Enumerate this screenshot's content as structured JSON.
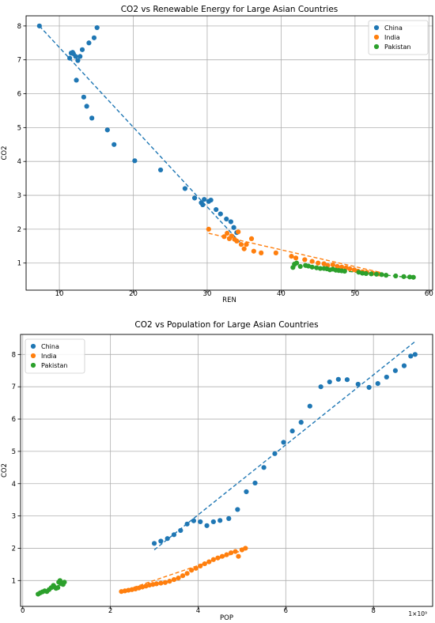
{
  "chart_data": [
    {
      "type": "scatter",
      "title": "CO2 vs Renewable Energy for Large Asian Countries",
      "xlabel": "REN",
      "ylabel": "CO2",
      "xlim": [
        5.5,
        60.5
      ],
      "ylim": [
        0.2,
        8.3
      ],
      "xticks": [
        10,
        20,
        30,
        40,
        50,
        60
      ],
      "yticks": [
        1,
        2,
        3,
        4,
        5,
        6,
        7,
        8
      ],
      "grid": true,
      "legend_position": "top-right",
      "trend_lines": "dashed",
      "series": [
        {
          "name": "China",
          "color": "#1f77b4",
          "points": [
            [
              7.3,
              8.0
            ],
            [
              11.4,
              7.05
            ],
            [
              11.6,
              7.2
            ],
            [
              11.8,
              7.22
            ],
            [
              11.9,
              7.18
            ],
            [
              12.2,
              7.1
            ],
            [
              12.3,
              6.4
            ],
            [
              12.5,
              6.98
            ],
            [
              12.8,
              7.1
            ],
            [
              13.1,
              7.3
            ],
            [
              13.3,
              5.9
            ],
            [
              13.7,
              5.63
            ],
            [
              14.0,
              7.5
            ],
            [
              14.4,
              5.28
            ],
            [
              14.7,
              7.65
            ],
            [
              15.1,
              7.95
            ],
            [
              16.5,
              4.93
            ],
            [
              17.4,
              4.5
            ],
            [
              20.2,
              4.02
            ],
            [
              23.7,
              3.75
            ],
            [
              27.0,
              3.2
            ],
            [
              28.3,
              2.92
            ],
            [
              29.2,
              2.78
            ],
            [
              29.4,
              2.72
            ],
            [
              29.6,
              2.88
            ],
            [
              30.2,
              2.82
            ],
            [
              30.5,
              2.86
            ],
            [
              31.2,
              2.58
            ],
            [
              31.8,
              2.45
            ],
            [
              32.6,
              2.3
            ],
            [
              33.2,
              2.22
            ],
            [
              33.6,
              2.05
            ],
            [
              34.0,
              1.9
            ]
          ],
          "trend": [
            [
              7.3,
              8.0
            ],
            [
              34.5,
              1.6
            ]
          ]
        },
        {
          "name": "India",
          "color": "#ff7f0e",
          "points": [
            [
              30.2,
              2.0
            ],
            [
              32.3,
              1.78
            ],
            [
              32.7,
              1.88
            ],
            [
              33.0,
              1.72
            ],
            [
              33.3,
              1.8
            ],
            [
              33.7,
              1.7
            ],
            [
              34.0,
              1.65
            ],
            [
              34.2,
              1.92
            ],
            [
              34.6,
              1.55
            ],
            [
              35.0,
              1.42
            ],
            [
              35.3,
              1.55
            ],
            [
              36.0,
              1.72
            ],
            [
              36.3,
              1.35
            ],
            [
              37.3,
              1.3
            ],
            [
              39.3,
              1.3
            ],
            [
              41.4,
              1.2
            ],
            [
              42.0,
              1.15
            ],
            [
              43.2,
              1.1
            ],
            [
              44.2,
              1.05
            ],
            [
              45.0,
              1.0
            ],
            [
              45.8,
              0.98
            ],
            [
              46.3,
              0.93
            ],
            [
              47.0,
              0.95
            ],
            [
              47.6,
              0.9
            ],
            [
              48.2,
              0.88
            ],
            [
              48.8,
              0.86
            ],
            [
              49.3,
              0.83
            ],
            [
              49.9,
              0.8
            ],
            [
              50.4,
              0.76
            ],
            [
              51.0,
              0.74
            ],
            [
              51.6,
              0.73
            ],
            [
              52.4,
              0.7
            ],
            [
              53.2,
              0.68
            ]
          ],
          "trend": [
            [
              30.2,
              1.88
            ],
            [
              53.5,
              0.72
            ]
          ]
        },
        {
          "name": "Pakistan",
          "color": "#2ca02c",
          "points": [
            [
              41.6,
              0.87
            ],
            [
              41.8,
              0.97
            ],
            [
              42.1,
              1.0
            ],
            [
              42.6,
              0.9
            ],
            [
              43.3,
              0.93
            ],
            [
              43.7,
              0.91
            ],
            [
              44.2,
              0.88
            ],
            [
              44.8,
              0.86
            ],
            [
              45.3,
              0.84
            ],
            [
              45.8,
              0.84
            ],
            [
              46.2,
              0.83
            ],
            [
              46.6,
              0.8
            ],
            [
              47.0,
              0.82
            ],
            [
              47.4,
              0.79
            ],
            [
              47.8,
              0.78
            ],
            [
              48.2,
              0.77
            ],
            [
              48.6,
              0.76
            ],
            [
              50.5,
              0.73
            ],
            [
              51.0,
              0.7
            ],
            [
              51.5,
              0.69
            ],
            [
              52.2,
              0.68
            ],
            [
              52.9,
              0.67
            ],
            [
              53.6,
              0.66
            ],
            [
              54.2,
              0.64
            ],
            [
              55.5,
              0.62
            ],
            [
              56.6,
              0.6
            ],
            [
              57.4,
              0.59
            ],
            [
              57.9,
              0.58
            ]
          ],
          "trend": [
            [
              41.5,
              0.92
            ],
            [
              58.0,
              0.56
            ]
          ]
        }
      ]
    },
    {
      "type": "scatter",
      "title": "CO2 vs Population for Large Asian Countries",
      "xlabel": "POP",
      "ylabel": "CO2",
      "x_offset_label": "1×10⁹",
      "xlim": [
        -0.05,
        9.35
      ],
      "ylim": [
        0.2,
        8.62
      ],
      "xticks": [
        0,
        2,
        4,
        6,
        8
      ],
      "yticks": [
        1,
        2,
        3,
        4,
        5,
        6,
        7,
        8
      ],
      "grid": true,
      "legend_position": "top-left",
      "trend_lines": "dashed",
      "series": [
        {
          "name": "China",
          "color": "#1f77b4",
          "points": [
            [
              3.0,
              2.15
            ],
            [
              3.15,
              2.22
            ],
            [
              3.3,
              2.3
            ],
            [
              3.45,
              2.42
            ],
            [
              3.6,
              2.55
            ],
            [
              3.75,
              2.75
            ],
            [
              3.9,
              2.85
            ],
            [
              4.05,
              2.82
            ],
            [
              4.2,
              2.7
            ],
            [
              4.35,
              2.82
            ],
            [
              4.5,
              2.86
            ],
            [
              4.7,
              2.92
            ],
            [
              4.9,
              3.2
            ],
            [
              5.1,
              3.75
            ],
            [
              5.3,
              4.02
            ],
            [
              5.5,
              4.5
            ],
            [
              5.75,
              4.93
            ],
            [
              5.95,
              5.28
            ],
            [
              6.15,
              5.63
            ],
            [
              6.35,
              5.9
            ],
            [
              6.55,
              6.4
            ],
            [
              6.8,
              7.0
            ],
            [
              7.0,
              7.15
            ],
            [
              7.2,
              7.23
            ],
            [
              7.4,
              7.22
            ],
            [
              7.65,
              7.08
            ],
            [
              7.9,
              6.98
            ],
            [
              8.1,
              7.1
            ],
            [
              8.3,
              7.3
            ],
            [
              8.5,
              7.5
            ],
            [
              8.7,
              7.65
            ],
            [
              8.85,
              7.95
            ],
            [
              8.95,
              8.0
            ]
          ],
          "trend": [
            [
              3.0,
              1.95
            ],
            [
              8.95,
              8.4
            ]
          ]
        },
        {
          "name": "India",
          "color": "#ff7f0e",
          "points": [
            [
              2.25,
              0.66
            ],
            [
              2.33,
              0.68
            ],
            [
              2.41,
              0.7
            ],
            [
              2.49,
              0.72
            ],
            [
              2.57,
              0.74
            ],
            [
              2.65,
              0.77
            ],
            [
              2.73,
              0.8
            ],
            [
              2.81,
              0.83
            ],
            [
              2.89,
              0.86
            ],
            [
              2.97,
              0.88
            ],
            [
              3.05,
              0.9
            ],
            [
              3.15,
              0.92
            ],
            [
              3.25,
              0.94
            ],
            [
              3.35,
              0.98
            ],
            [
              3.45,
              1.03
            ],
            [
              3.55,
              1.08
            ],
            [
              3.65,
              1.15
            ],
            [
              3.75,
              1.22
            ],
            [
              3.85,
              1.32
            ],
            [
              3.95,
              1.38
            ],
            [
              4.05,
              1.45
            ],
            [
              4.15,
              1.52
            ],
            [
              4.25,
              1.58
            ],
            [
              4.35,
              1.65
            ],
            [
              4.45,
              1.7
            ],
            [
              4.55,
              1.75
            ],
            [
              4.65,
              1.8
            ],
            [
              4.75,
              1.86
            ],
            [
              4.85,
              1.9
            ],
            [
              4.92,
              1.75
            ],
            [
              5.0,
              1.95
            ],
            [
              5.08,
              2.0
            ]
          ],
          "trend": [
            [
              2.25,
              0.66
            ],
            [
              5.05,
              1.95
            ]
          ]
        },
        {
          "name": "Pakistan",
          "color": "#2ca02c",
          "points": [
            [
              0.35,
              0.58
            ],
            [
              0.4,
              0.62
            ],
            [
              0.45,
              0.65
            ],
            [
              0.5,
              0.68
            ],
            [
              0.55,
              0.66
            ],
            [
              0.6,
              0.72
            ],
            [
              0.65,
              0.78
            ],
            [
              0.7,
              0.85
            ],
            [
              0.72,
              0.8
            ],
            [
              0.76,
              0.76
            ],
            [
              0.8,
              0.78
            ],
            [
              0.82,
              0.95
            ],
            [
              0.85,
              1.0
            ],
            [
              0.88,
              0.9
            ],
            [
              0.92,
              0.88
            ],
            [
              0.95,
              0.95
            ]
          ],
          "trend": [
            [
              0.35,
              0.6
            ],
            [
              0.95,
              0.92
            ]
          ]
        }
      ]
    }
  ]
}
